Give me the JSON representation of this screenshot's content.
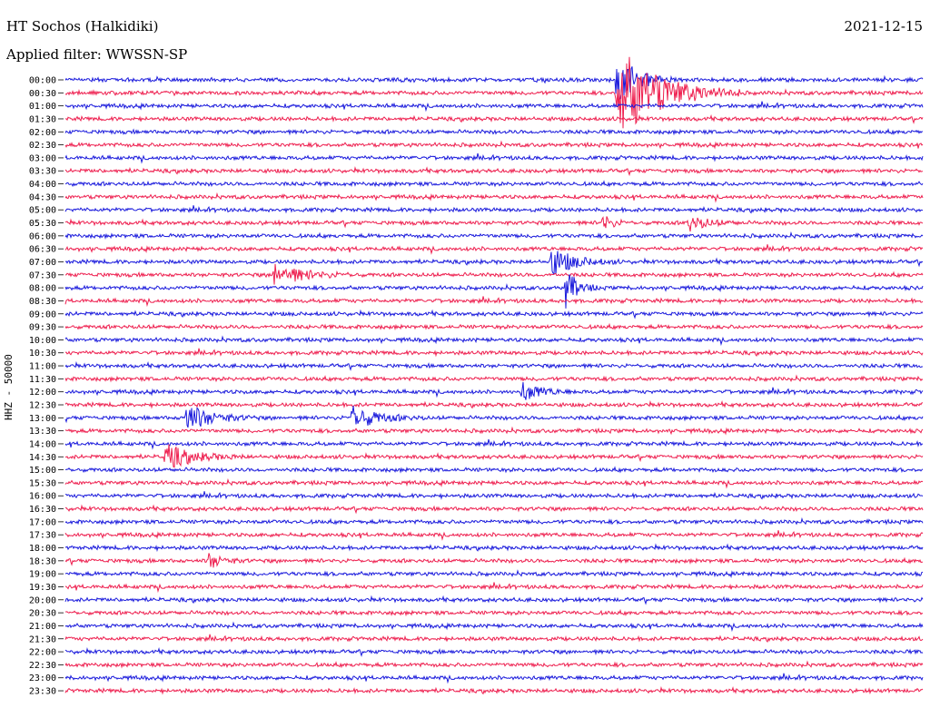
{
  "header": {
    "station": "HT Sochos (Halkidiki)",
    "date": "2021-12-15",
    "filter_label": "Applied filter: WWSSN-SP",
    "channel_label": "HHZ - 50000"
  },
  "colors": {
    "trace_a": "#1a1adc",
    "trace_b": "#ee1f4f"
  },
  "chart_data": {
    "type": "line",
    "title": "HT Sochos (Halkidiki)",
    "subtitle": "2021-12-15",
    "ylabel": "HHZ - 50000",
    "xlabel": "",
    "filter": "WWSSN-SP",
    "grid": false,
    "legend": "none",
    "row_labels": [
      "00:00",
      "00:30",
      "01:00",
      "01:30",
      "02:00",
      "02:30",
      "03:00",
      "03:30",
      "04:00",
      "04:30",
      "05:00",
      "05:30",
      "06:00",
      "06:30",
      "07:00",
      "07:30",
      "08:00",
      "08:30",
      "09:00",
      "09:30",
      "10:00",
      "10:30",
      "11:00",
      "11:30",
      "12:00",
      "12:30",
      "13:00",
      "13:30",
      "14:00",
      "14:30",
      "15:00",
      "15:30",
      "16:00",
      "16:30",
      "17:00",
      "17:30",
      "18:00",
      "18:30",
      "19:00",
      "19:30",
      "20:00",
      "20:30",
      "21:00",
      "21:30",
      "22:00",
      "22:30",
      "23:00",
      "23:30"
    ],
    "row_minutes": 30,
    "events": [
      {
        "row": "00:30",
        "minute": 19.3,
        "amplitude": 5.5,
        "duration": 2.2,
        "note": "large event"
      },
      {
        "row": "00:00",
        "minute": 19.3,
        "amplitude": 3.0,
        "duration": 1.0
      },
      {
        "row": "07:00",
        "minute": 17.0,
        "amplitude": 1.6,
        "duration": 1.2
      },
      {
        "row": "08:00",
        "minute": 17.5,
        "amplitude": 2.2,
        "duration": 0.6
      },
      {
        "row": "13:00",
        "minute": 4.2,
        "amplitude": 1.6,
        "duration": 1.3
      },
      {
        "row": "13:00",
        "minute": 10.0,
        "amplitude": 1.4,
        "duration": 1.3
      },
      {
        "row": "14:30",
        "minute": 3.5,
        "amplitude": 1.4,
        "duration": 1.4
      },
      {
        "row": "07:30",
        "minute": 7.3,
        "amplitude": 1.3,
        "duration": 1.5
      },
      {
        "row": "05:30",
        "minute": 18.8,
        "amplitude": 1.0,
        "duration": 0.5
      },
      {
        "row": "05:30",
        "minute": 21.8,
        "amplitude": 0.9,
        "duration": 1.0
      },
      {
        "row": "12:00",
        "minute": 16.0,
        "amplitude": 1.0,
        "duration": 1.0
      },
      {
        "row": "18:30",
        "minute": 5.0,
        "amplitude": 0.9,
        "duration": 0.7
      }
    ]
  }
}
